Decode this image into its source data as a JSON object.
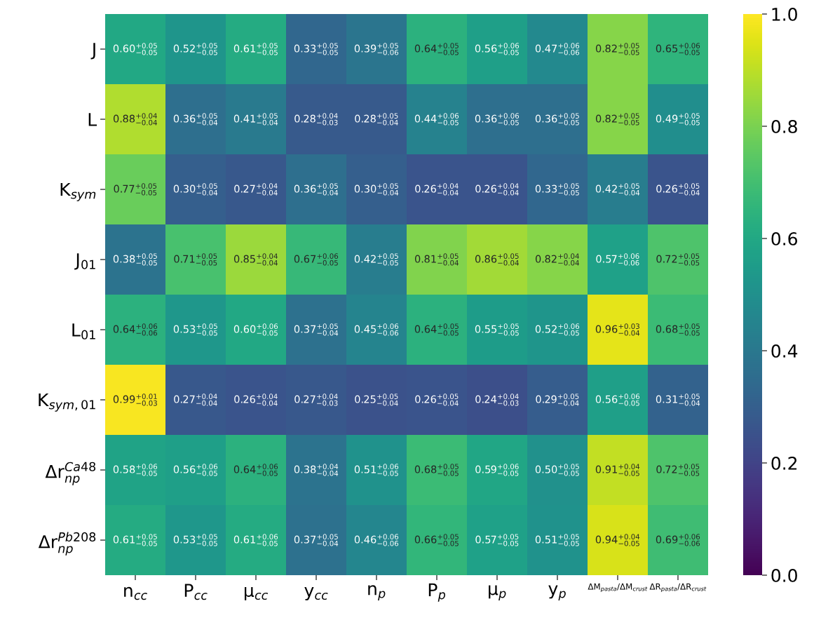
{
  "chart_data": {
    "type": "heatmap",
    "categories": [
      "n$_{cc}$",
      "P$_{cc}$",
      "μ$_{cc}$",
      "y$_{cc}$",
      "n$_{p}$",
      "P$_{p}$",
      "μ$_{p}$",
      "y$_{p}$",
      "ΔM$_{pasta}$/ΔM$_{crust}$",
      "ΔR$_{pasta}$/ΔR$_{crust}$"
    ],
    "y_categories": [
      "J",
      "L",
      "K$_{sym}$",
      "J$_{01}$",
      "L$_{01}$",
      "K$_{sym,01}$",
      "Δr$^{Ca48}$$_{np}$",
      "Δr$^{Pb208}$$_{np}$"
    ],
    "cells": [
      [
        0.6,
        0.52,
        0.61,
        0.33,
        0.39,
        0.64,
        0.56,
        0.47,
        0.82,
        0.65
      ],
      [
        0.88,
        0.36,
        0.41,
        0.28,
        0.28,
        0.44,
        0.36,
        0.36,
        0.82,
        0.49
      ],
      [
        0.77,
        0.3,
        0.27,
        0.36,
        0.3,
        0.26,
        0.26,
        0.33,
        0.42,
        0.26
      ],
      [
        0.38,
        0.71,
        0.85,
        0.67,
        0.42,
        0.81,
        0.86,
        0.82,
        0.57,
        0.72
      ],
      [
        0.64,
        0.53,
        0.6,
        0.37,
        0.45,
        0.64,
        0.55,
        0.52,
        0.96,
        0.68
      ],
      [
        0.99,
        0.27,
        0.26,
        0.27,
        0.25,
        0.26,
        0.24,
        0.29,
        0.56,
        0.31
      ],
      [
        0.58,
        0.56,
        0.64,
        0.38,
        0.51,
        0.68,
        0.59,
        0.5,
        0.91,
        0.72
      ],
      [
        0.61,
        0.53,
        0.61,
        0.37,
        0.46,
        0.66,
        0.57,
        0.51,
        0.94,
        0.69
      ]
    ],
    "cell_labels": [
      [
        "0.60$^{+0.05}$$_{−0.05}$",
        "0.52$^{+0.05}$$_{−0.05}$",
        "0.61$^{+0.05}$$_{−0.05}$",
        "0.33$^{+0.05}$$_{−0.05}$",
        "0.39$^{+0.05}$$_{−0.06}$",
        "0.64$^{+0.05}$$_{−0.05}$",
        "0.56$^{+0.06}$$_{−0.05}$",
        "0.47$^{+0.06}$$_{−0.06}$",
        "0.82$^{+0.05}$$_{−0.05}$",
        "0.65$^{+0.06}$$_{−0.05}$"
      ],
      [
        "0.88$^{+0.04}$$_{−0.04}$",
        "0.36$^{+0.05}$$_{−0.04}$",
        "0.41$^{+0.05}$$_{−0.04}$",
        "0.28$^{+0.04}$$_{−0.03}$",
        "0.28$^{+0.05}$$_{−0.04}$",
        "0.44$^{+0.06}$$_{−0.05}$",
        "0.36$^{+0.06}$$_{−0.05}$",
        "0.36$^{+0.05}$$_{−0.05}$",
        "0.82$^{+0.05}$$_{−0.05}$",
        "0.49$^{+0.05}$$_{−0.05}$"
      ],
      [
        "0.77$^{+0.05}$$_{−0.05}$",
        "0.30$^{+0.05}$$_{−0.04}$",
        "0.27$^{+0.04}$$_{−0.04}$",
        "0.36$^{+0.05}$$_{−0.04}$",
        "0.30$^{+0.05}$$_{−0.04}$",
        "0.26$^{+0.04}$$_{−0.04}$",
        "0.26$^{+0.04}$$_{−0.04}$",
        "0.33$^{+0.05}$$_{−0.05}$",
        "0.42$^{+0.05}$$_{−0.04}$",
        "0.26$^{+0.05}$$_{−0.04}$"
      ],
      [
        "0.38$^{+0.05}$$_{−0.05}$",
        "0.71$^{+0.05}$$_{−0.05}$",
        "0.85$^{+0.04}$$_{−0.04}$",
        "0.67$^{+0.06}$$_{−0.05}$",
        "0.42$^{+0.05}$$_{−0.05}$",
        "0.81$^{+0.05}$$_{−0.04}$",
        "0.86$^{+0.05}$$_{−0.04}$",
        "0.82$^{+0.04}$$_{−0.04}$",
        "0.57$^{+0.06}$$_{−0.06}$",
        "0.72$^{+0.05}$$_{−0.05}$"
      ],
      [
        "0.64$^{+0.06}$$_{−0.06}$",
        "0.53$^{+0.05}$$_{−0.05}$",
        "0.60$^{+0.06}$$_{−0.05}$",
        "0.37$^{+0.05}$$_{−0.04}$",
        "0.45$^{+0.06}$$_{−0.06}$",
        "0.64$^{+0.05}$$_{−0.05}$",
        "0.55$^{+0.05}$$_{−0.05}$",
        "0.52$^{+0.06}$$_{−0.05}$",
        "0.96$^{+0.03}$$_{−0.04}$",
        "0.68$^{+0.05}$$_{−0.05}$"
      ],
      [
        "0.99$^{+0.01}$$_{−0.03}$",
        "0.27$^{+0.04}$$_{−0.04}$",
        "0.26$^{+0.04}$$_{−0.04}$",
        "0.27$^{+0.04}$$_{−0.03}$",
        "0.25$^{+0.05}$$_{−0.04}$",
        "0.26$^{+0.05}$$_{−0.04}$",
        "0.24$^{+0.04}$$_{−0.03}$",
        "0.29$^{+0.05}$$_{−0.04}$",
        "0.56$^{+0.06}$$_{−0.05}$",
        "0.31$^{+0.05}$$_{−0.04}$"
      ],
      [
        "0.58$^{+0.06}$$_{−0.05}$",
        "0.56$^{+0.06}$$_{−0.05}$",
        "0.64$^{+0.06}$$_{−0.05}$",
        "0.38$^{+0.04}$$_{−0.04}$",
        "0.51$^{+0.06}$$_{−0.05}$",
        "0.68$^{+0.05}$$_{−0.05}$",
        "0.59$^{+0.06}$$_{−0.05}$",
        "0.50$^{+0.05}$$_{−0.05}$",
        "0.91$^{+0.04}$$_{−0.05}$",
        "0.72$^{+0.05}$$_{−0.05}$"
      ],
      [
        "0.61$^{+0.05}$$_{−0.05}$",
        "0.53$^{+0.05}$$_{−0.05}$",
        "0.61$^{+0.06}$$_{−0.05}$",
        "0.37$^{+0.05}$$_{−0.04}$",
        "0.46$^{+0.06}$$_{−0.06}$",
        "0.66$^{+0.05}$$_{−0.05}$",
        "0.57$^{+0.05}$$_{−0.05}$",
        "0.51$^{+0.05}$$_{−0.05}$",
        "0.94$^{+0.04}$$_{−0.05}$",
        "0.69$^{+0.06}$$_{−0.06}$"
      ]
    ],
    "clim": [
      0.0,
      1.0
    ],
    "cticks": [
      {
        "value": 0.0,
        "label": "0.0"
      },
      {
        "value": 0.2,
        "label": "0.2"
      },
      {
        "value": 0.4,
        "label": "0.4"
      },
      {
        "value": 0.6,
        "label": "0.6"
      },
      {
        "value": 0.8,
        "label": "0.8"
      },
      {
        "value": 1.0,
        "label": "1.0"
      }
    ]
  }
}
